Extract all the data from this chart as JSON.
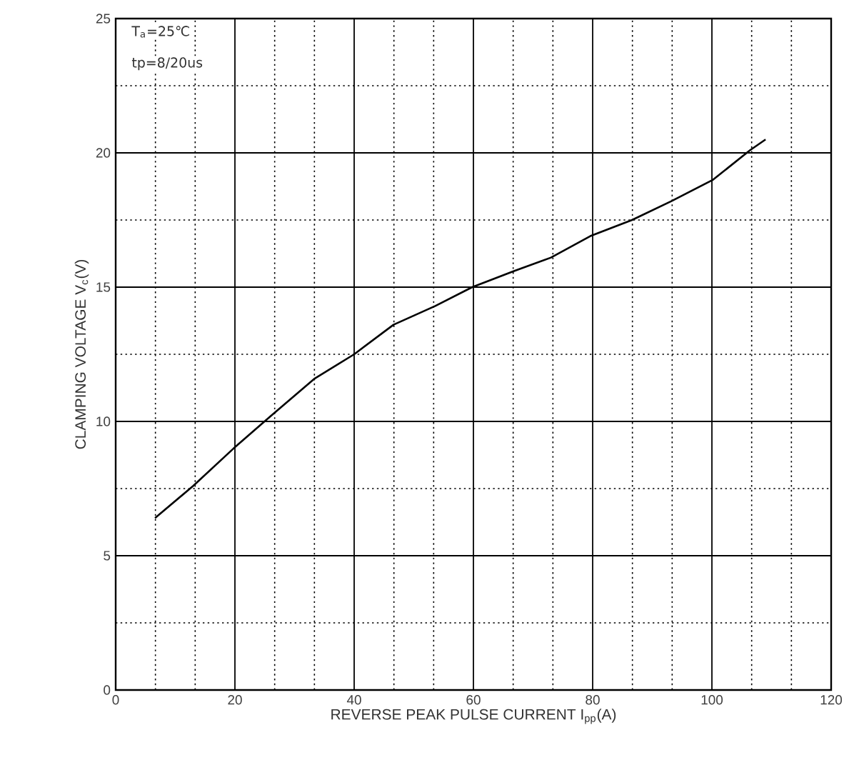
{
  "chart_data": {
    "type": "line",
    "xlabel": "REVERSE PEAK PULSE CURRENT  I$_{pp}$(A)",
    "ylabel": "CLAMPING VOLTAGE  V$_{c}$(V)",
    "annotations": [
      "T$_{a}$=25℃",
      "tp=8/20us"
    ],
    "xlim": [
      0,
      120
    ],
    "xticks": [
      0,
      20,
      40,
      60,
      80,
      100,
      120
    ],
    "ylim": [
      0,
      25
    ],
    "yticks": [
      0,
      5,
      10,
      15,
      20,
      25
    ],
    "grid": true,
    "marker": "none",
    "line_style": "solid",
    "series": [
      {
        "color": "#000000",
        "x": [
          6.6,
          13.0,
          19.8,
          26.0,
          33.4,
          40.0,
          46.6,
          53.6,
          59.8,
          66.8,
          73.0,
          79.6,
          86.6,
          93.2,
          100.2,
          106.4,
          109.0
        ],
        "values": [
          6.4,
          7.6,
          9.0,
          10.2,
          11.6,
          12.5,
          13.6,
          14.3,
          15.0,
          15.6,
          16.1,
          16.9,
          17.5,
          18.2,
          19.0,
          20.1,
          20.5
        ]
      }
    ]
  }
}
